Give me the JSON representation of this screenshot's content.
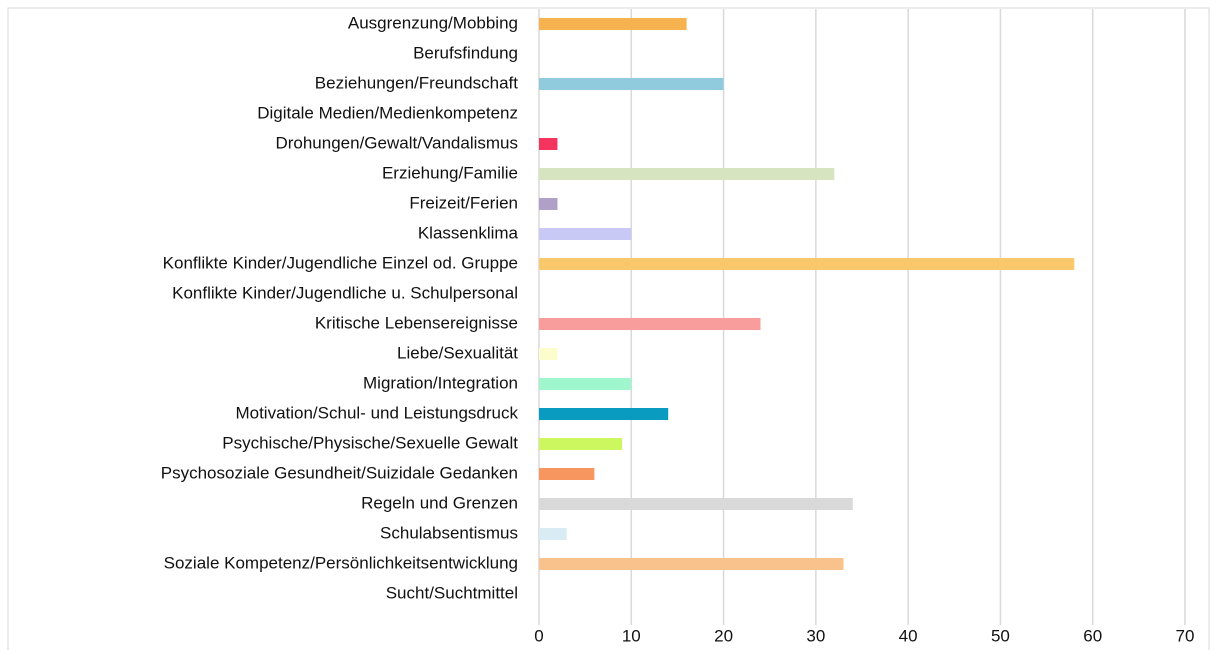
{
  "chart_data": {
    "type": "barh",
    "categories": [
      "Ausgrenzung/Mobbing",
      "Berufsfindung",
      "Beziehungen/Freundschaft",
      "Digitale Medien/Medienkompetenz",
      "Drohungen/Gewalt/Vandalismus",
      "Erziehung/Familie",
      "Freizeit/Ferien",
      "Klassenklima",
      "Konflikte Kinder/Jugendliche Einzel od. Gruppe",
      "Konflikte Kinder/Jugendliche u. Schulpersonal",
      "Kritische Lebensereignisse",
      "Liebe/Sexualität",
      "Migration/Integration",
      "Motivation/Schul- und Leistungsdruck",
      "Psychische/Physische/Sexuelle Gewalt",
      "Psychosoziale Gesundheit/Suizidale Gedanken",
      "Regeln und Grenzen",
      "Schulabsentismus",
      "Soziale Kompetenz/Persönlichkeitsentwicklung",
      "Sucht/Suchtmittel"
    ],
    "values": [
      16,
      0,
      20,
      0,
      2,
      32,
      2,
      10,
      58,
      0,
      24,
      2,
      10,
      14,
      9,
      6,
      34,
      3,
      33,
      0
    ],
    "colors": [
      "#f6b24e",
      "#7fb3d5",
      "#8fcbdc",
      "#c9a0dc",
      "#f2345f",
      "#d6e4bf",
      "#b09fc7",
      "#c9c9f5",
      "#f8c86a",
      "#a0c0e0",
      "#f99c9c",
      "#fcfccc",
      "#9ff5cc",
      "#0a9cc0",
      "#cdf75f",
      "#f7965f",
      "#d9d9d9",
      "#d9ebf3",
      "#f9c28c",
      "#cccccc"
    ],
    "xlim": [
      0,
      70
    ],
    "xticks": [
      0,
      10,
      20,
      30,
      40,
      50,
      60,
      70
    ],
    "grid": true
  }
}
